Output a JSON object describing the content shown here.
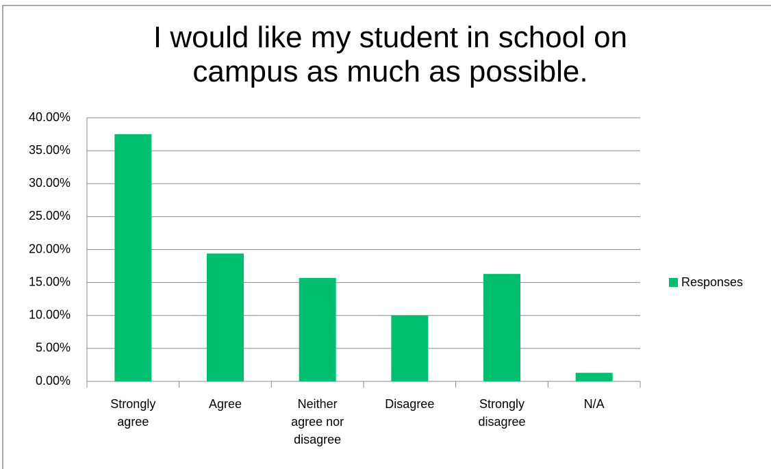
{
  "chart_data": {
    "type": "bar",
    "title": "I would like my student in school on campus as much as possible.",
    "categories": [
      "Strongly agree",
      "Agree",
      "Neither agree nor disagree",
      "Disagree",
      "Strongly disagree",
      "N/A"
    ],
    "series": [
      {
        "name": "Responses",
        "color": "#00c070",
        "values": [
          37.5,
          19.4,
          15.7,
          10.0,
          16.3,
          1.3
        ]
      }
    ],
    "ylim": [
      0,
      40
    ],
    "yticks": [
      {
        "value": 0,
        "label": "0.00%"
      },
      {
        "value": 5,
        "label": "5.00%"
      },
      {
        "value": 10,
        "label": "10.00%"
      },
      {
        "value": 15,
        "label": "15.00%"
      },
      {
        "value": 20,
        "label": "20.00%"
      },
      {
        "value": 25,
        "label": "25.00%"
      },
      {
        "value": 30,
        "label": "30.00%"
      },
      {
        "value": 35,
        "label": "35.00%"
      },
      {
        "value": 40,
        "label": "40.00%"
      }
    ],
    "grid": true,
    "legend": "right"
  }
}
